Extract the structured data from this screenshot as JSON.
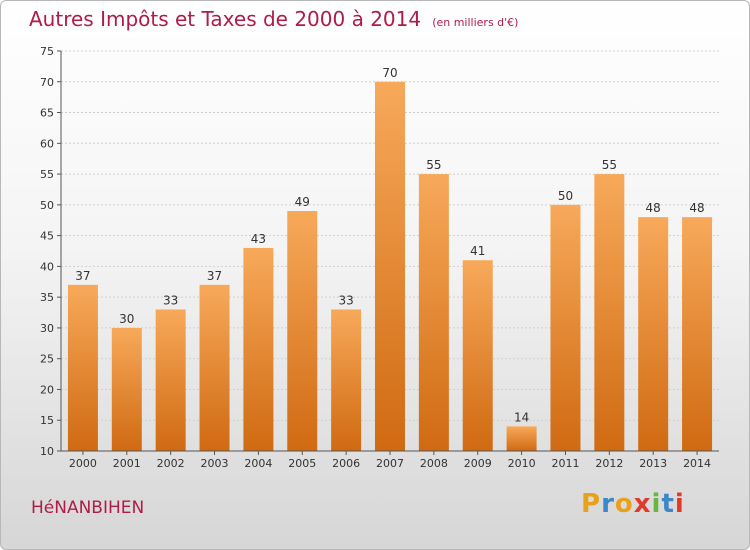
{
  "title": "Autres Impôts et Taxes de 2000 à 2014",
  "subtitle": "(en milliers d'€)",
  "commune": "HéNANBIHEN",
  "logo": {
    "letters": [
      "P",
      "r",
      "o",
      "x",
      "i",
      "t",
      "i"
    ],
    "colors": [
      "#e8a21a",
      "#3b87c9",
      "#e8a21a",
      "#e23a2a",
      "#6db33f",
      "#3b87c9",
      "#e23a2a"
    ]
  },
  "colors": {
    "bar_light": "#f7a95a",
    "bar_dark": "#d06a12",
    "title": "#b01c48",
    "grid": "#d0d0d0"
  },
  "chart_data": {
    "type": "bar",
    "categories": [
      "2000",
      "2001",
      "2002",
      "2003",
      "2004",
      "2005",
      "2006",
      "2007",
      "2008",
      "2009",
      "2010",
      "2011",
      "2012",
      "2013",
      "2014"
    ],
    "values": [
      37,
      30,
      33,
      37,
      43,
      49,
      33,
      70,
      55,
      41,
      14,
      50,
      55,
      48,
      48
    ],
    "ylim": [
      10,
      75
    ],
    "yticks": [
      10,
      15,
      20,
      25,
      30,
      35,
      40,
      45,
      50,
      55,
      60,
      65,
      70,
      75
    ],
    "grid": "horizontal dashed",
    "data_labels": true
  }
}
